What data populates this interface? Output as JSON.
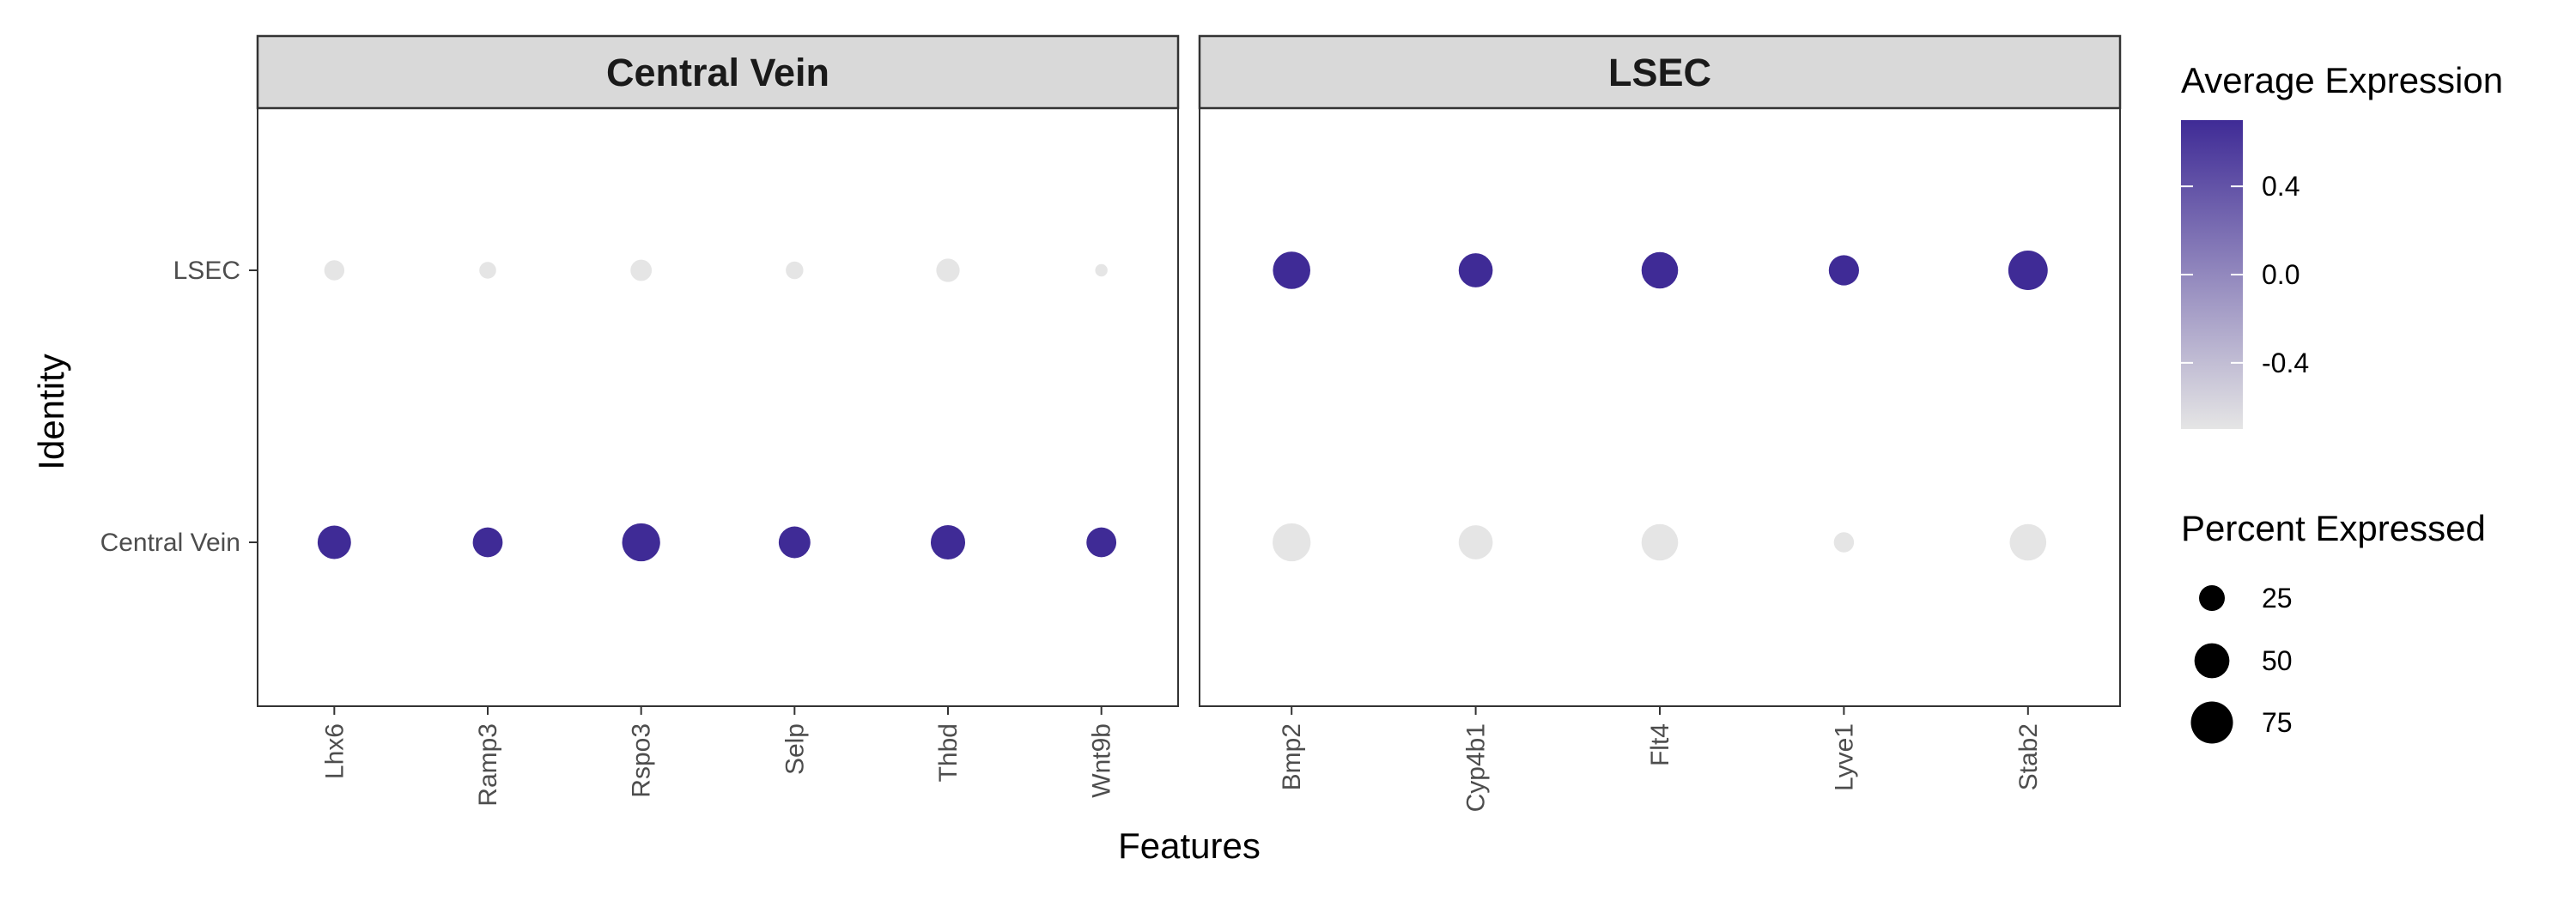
{
  "chart_data": {
    "type": "dot",
    "xlabel": "Features",
    "ylabel": "Identity",
    "identities": [
      "Central Vein",
      "LSEC"
    ],
    "panels": [
      {
        "title": "Central Vein",
        "features": [
          "Lhx6",
          "Ramp3",
          "Rspo3",
          "Selp",
          "Thbd",
          "Wnt9b"
        ],
        "points": [
          {
            "feature": "Lhx6",
            "identity": "LSEC",
            "avg_exp": -0.7,
            "pct": 14
          },
          {
            "feature": "Ramp3",
            "identity": "LSEC",
            "avg_exp": -0.7,
            "pct": 9
          },
          {
            "feature": "Rspo3",
            "identity": "LSEC",
            "avg_exp": -0.7,
            "pct": 16
          },
          {
            "feature": "Selp",
            "identity": "LSEC",
            "avg_exp": -0.7,
            "pct": 10
          },
          {
            "feature": "Thbd",
            "identity": "LSEC",
            "avg_exp": -0.7,
            "pct": 20
          },
          {
            "feature": "Wnt9b",
            "identity": "LSEC",
            "avg_exp": -0.7,
            "pct": 4
          },
          {
            "feature": "Lhx6",
            "identity": "Central Vein",
            "avg_exp": 0.7,
            "pct": 45
          },
          {
            "feature": "Ramp3",
            "identity": "Central Vein",
            "avg_exp": 0.7,
            "pct": 35
          },
          {
            "feature": "Rspo3",
            "identity": "Central Vein",
            "avg_exp": 0.7,
            "pct": 60
          },
          {
            "feature": "Selp",
            "identity": "Central Vein",
            "avg_exp": 0.7,
            "pct": 40
          },
          {
            "feature": "Thbd",
            "identity": "Central Vein",
            "avg_exp": 0.7,
            "pct": 48
          },
          {
            "feature": "Wnt9b",
            "identity": "Central Vein",
            "avg_exp": 0.7,
            "pct": 35
          }
        ]
      },
      {
        "title": "LSEC",
        "features": [
          "Bmp2",
          "Cyp4b1",
          "Flt4",
          "Lyve1",
          "Stab2"
        ],
        "points": [
          {
            "feature": "Bmp2",
            "identity": "LSEC",
            "avg_exp": 0.7,
            "pct": 58
          },
          {
            "feature": "Cyp4b1",
            "identity": "LSEC",
            "avg_exp": 0.7,
            "pct": 47
          },
          {
            "feature": "Flt4",
            "identity": "LSEC",
            "avg_exp": 0.7,
            "pct": 55
          },
          {
            "feature": "Lyve1",
            "identity": "LSEC",
            "avg_exp": 0.7,
            "pct": 36
          },
          {
            "feature": "Stab2",
            "identity": "LSEC",
            "avg_exp": 0.7,
            "pct": 65
          },
          {
            "feature": "Bmp2",
            "identity": "Central Vein",
            "avg_exp": -0.7,
            "pct": 60
          },
          {
            "feature": "Cyp4b1",
            "identity": "Central Vein",
            "avg_exp": -0.7,
            "pct": 47
          },
          {
            "feature": "Flt4",
            "identity": "Central Vein",
            "avg_exp": -0.7,
            "pct": 55
          },
          {
            "feature": "Lyve1",
            "identity": "Central Vein",
            "avg_exp": -0.7,
            "pct": 14
          },
          {
            "feature": "Stab2",
            "identity": "Central Vein",
            "avg_exp": -0.7,
            "pct": 55
          }
        ]
      }
    ],
    "legend_color": {
      "title": "Average Expression",
      "range": [
        -0.7,
        0.7
      ],
      "ticks": [
        0.4,
        0.0,
        -0.4
      ],
      "tick_labels": [
        "0.4",
        "0.0",
        "-0.4"
      ],
      "low_color": "#e5e5e5",
      "high_color": "#3f2b96"
    },
    "legend_size": {
      "title": "Percent Expressed",
      "values": [
        25,
        50,
        75
      ],
      "labels": [
        "25",
        "50",
        "75"
      ]
    },
    "legend_placement": "right",
    "grid": false
  }
}
